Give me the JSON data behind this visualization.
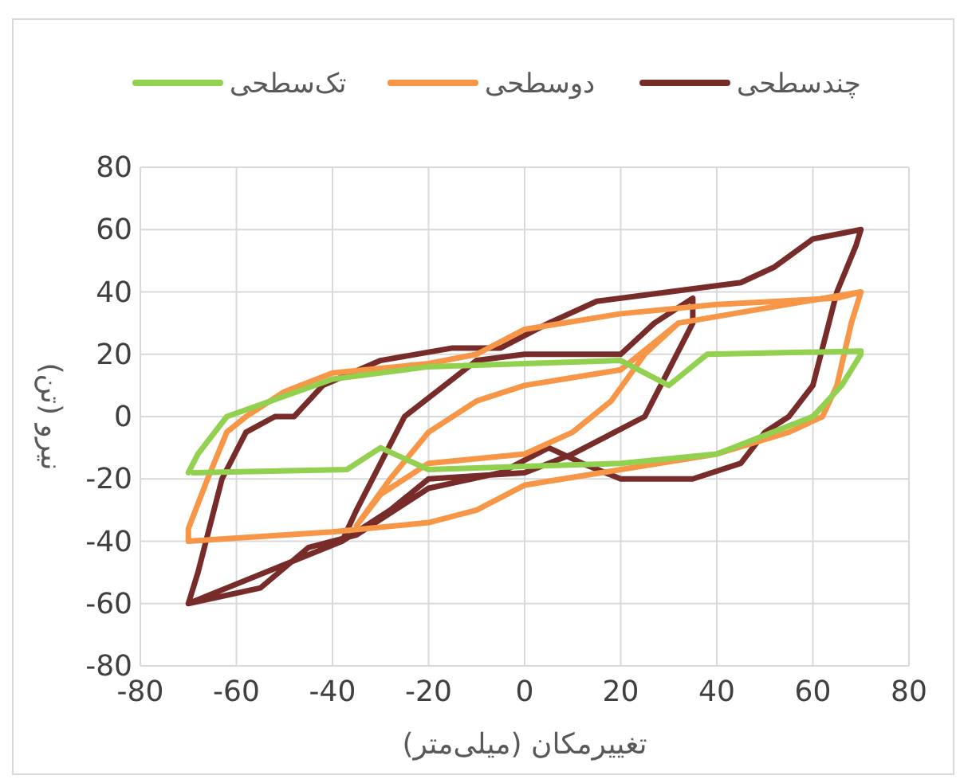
{
  "chart_data": {
    "type": "line",
    "xlabel": "تغییرمکان (میلی‌متر)",
    "ylabel": "نیرو (تن)",
    "xlim": [
      -80,
      80
    ],
    "ylim": [
      -80,
      80
    ],
    "xticks": [
      -80,
      -60,
      -40,
      -20,
      0,
      20,
      40,
      60,
      80
    ],
    "yticks": [
      -80,
      -60,
      -40,
      -20,
      0,
      20,
      40,
      60,
      80
    ],
    "grid": true,
    "legend": "top",
    "marker": "none",
    "line_style": "solid",
    "series": [
      {
        "name": "تک‌سطحی",
        "color": "#92d050",
        "x": [
          -70,
          -68,
          -62,
          -40,
          -20,
          0,
          20,
          30,
          38,
          70,
          70,
          66,
          60,
          40,
          20,
          0,
          -20,
          -30,
          -37,
          -69
        ],
        "values": [
          -18,
          -12,
          0,
          12,
          16,
          17,
          18,
          10,
          20,
          21,
          20,
          10,
          0,
          -12,
          -15,
          -16,
          -17,
          -10,
          -17,
          -18
        ]
      },
      {
        "name": "دوسطحی",
        "color": "#f79646",
        "x": [
          70,
          68,
          65,
          62,
          55,
          40,
          20,
          0,
          -10,
          -20,
          -40,
          -70,
          -70,
          -66,
          -62,
          -58,
          -50,
          -40,
          -20,
          -10,
          0,
          20,
          40,
          65,
          70,
          32,
          25,
          18,
          10,
          0,
          -20,
          -30,
          -35,
          -28,
          -20,
          -10,
          0,
          20,
          32
        ],
        "values": [
          40,
          30,
          10,
          0,
          -5,
          -12,
          -17,
          -22,
          -30,
          -34,
          -37,
          -40,
          -36,
          -20,
          -5,
          0,
          8,
          14,
          17,
          20,
          28,
          33,
          36,
          38,
          40,
          30,
          20,
          5,
          -5,
          -12,
          -15,
          -25,
          -35,
          -20,
          -5,
          5,
          10,
          15,
          30
        ]
      },
      {
        "name": "چندسطحی",
        "color": "#772c2a",
        "x": [
          -70,
          -68,
          -63,
          -58,
          -52,
          -48,
          -42,
          -30,
          -15,
          -5,
          5,
          15,
          30,
          45,
          52,
          60,
          70,
          69,
          65,
          60,
          55,
          50,
          45,
          35,
          20,
          12,
          5,
          -5,
          -20,
          -35,
          -45,
          -55,
          -70,
          -38,
          -35,
          -30,
          -25,
          -10,
          0,
          20,
          27,
          35,
          35,
          30,
          25,
          10,
          0,
          -20,
          -28,
          -38
        ],
        "values": [
          -60,
          -50,
          -20,
          -5,
          0,
          0,
          10,
          18,
          22,
          22,
          30,
          37,
          40,
          43,
          48,
          57,
          60,
          55,
          40,
          10,
          0,
          -5,
          -15,
          -20,
          -20,
          -15,
          -10,
          -18,
          -23,
          -38,
          -42,
          -55,
          -60,
          -40,
          -30,
          -15,
          0,
          18,
          20,
          20,
          30,
          38,
          30,
          15,
          0,
          -12,
          -18,
          -20,
          -30,
          -40
        ]
      }
    ]
  }
}
